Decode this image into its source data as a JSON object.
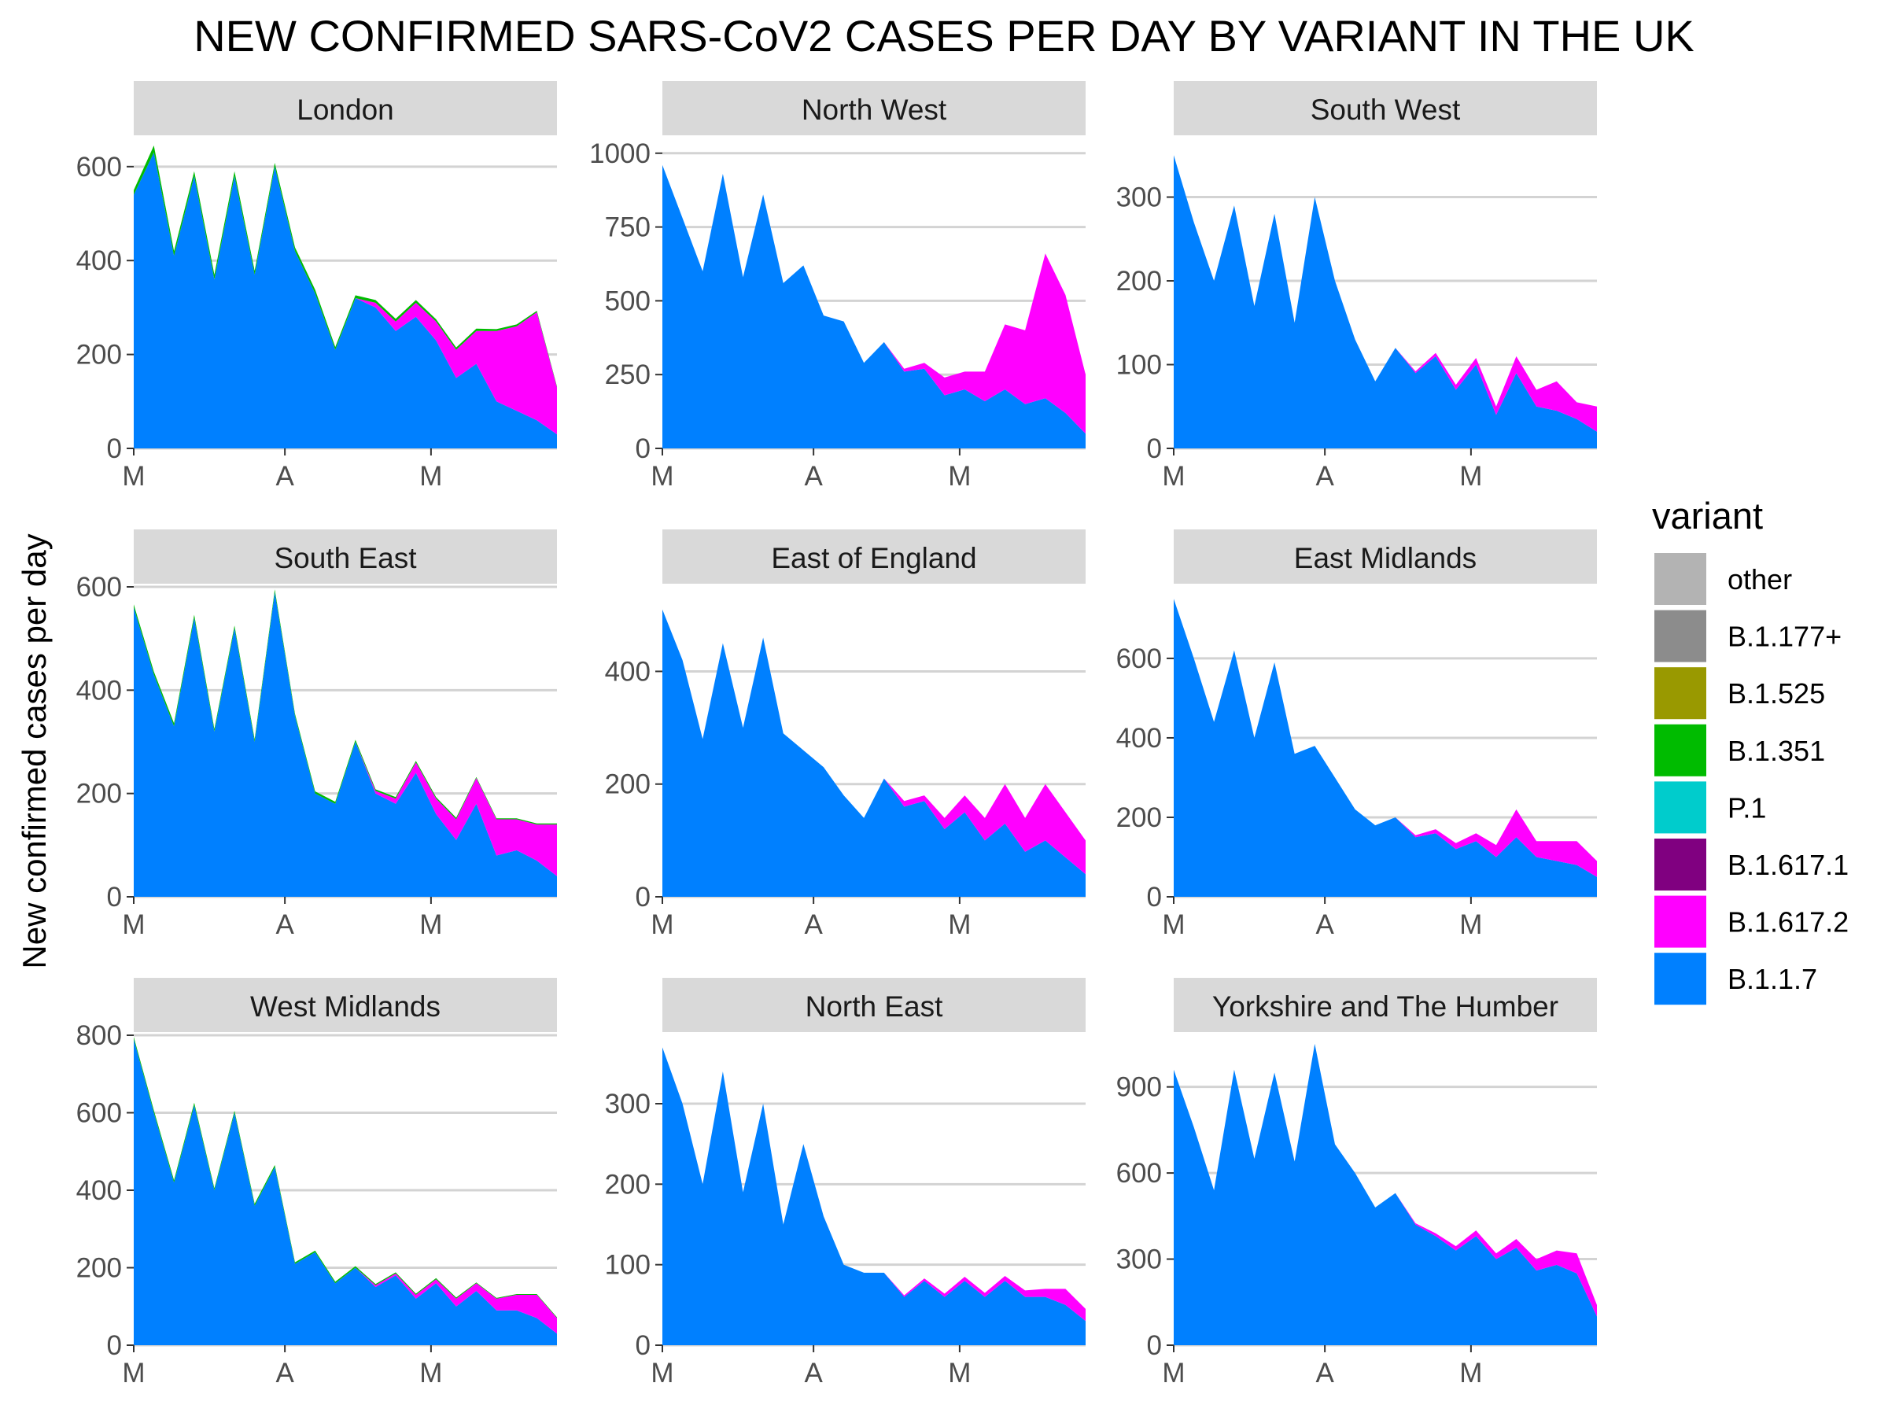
{
  "title": "NEW CONFIRMED SARS-CoV2 CASES PER DAY BY VARIANT IN THE UK",
  "ylabel": "New confirmed cases per day",
  "legend": {
    "title": "variant",
    "items": [
      {
        "label": "other",
        "color": "#B3B3B3"
      },
      {
        "label": "B.1.177+",
        "color": "#8C8C8C"
      },
      {
        "label": "B.1.525",
        "color": "#999900"
      },
      {
        "label": "B.1.351",
        "color": "#00BB00"
      },
      {
        "label": "P.1",
        "color": "#00CCCC"
      },
      {
        "label": "B.1.617.1",
        "color": "#800080"
      },
      {
        "label": "B.1.617.2",
        "color": "#FF00FF"
      },
      {
        "label": "B.1.1.7",
        "color": "#0080FF"
      }
    ]
  },
  "chart_data": [
    {
      "type": "area",
      "panel": "London",
      "x_ticks": [
        "M",
        "A",
        "M"
      ],
      "ylim": [
        0,
        660
      ],
      "y_ticks": [
        0,
        200,
        400,
        600
      ],
      "grid": true,
      "x": [
        0,
        4,
        8,
        12,
        16,
        20,
        24,
        28,
        32,
        36,
        40,
        44,
        48,
        52,
        56,
        60,
        64,
        68,
        72,
        76,
        80,
        84
      ],
      "series": [
        {
          "name": "B.1.1.7",
          "values": [
            540,
            630,
            410,
            580,
            360,
            580,
            370,
            600,
            420,
            330,
            210,
            320,
            300,
            250,
            280,
            230,
            150,
            180,
            100,
            80,
            60,
            30
          ]
        },
        {
          "name": "B.1.617.2",
          "values": [
            0,
            0,
            0,
            0,
            0,
            0,
            0,
            0,
            0,
            0,
            0,
            0,
            10,
            20,
            30,
            40,
            60,
            70,
            150,
            180,
            230,
            100
          ]
        },
        {
          "name": "B.1.351",
          "values": [
            10,
            15,
            10,
            10,
            10,
            10,
            8,
            8,
            8,
            8,
            6,
            6,
            6,
            6,
            6,
            5,
            5,
            5,
            4,
            4,
            3,
            2
          ]
        }
      ]
    },
    {
      "type": "area",
      "panel": "North West",
      "x_ticks": [
        "M",
        "A",
        "M"
      ],
      "ylim": [
        0,
        1050
      ],
      "y_ticks": [
        0,
        250,
        500,
        750,
        1000
      ],
      "grid": true,
      "x": [
        0,
        4,
        8,
        12,
        16,
        20,
        24,
        28,
        32,
        36,
        40,
        44,
        48,
        52,
        56,
        60,
        64,
        68,
        72,
        76,
        80,
        84
      ],
      "series": [
        {
          "name": "B.1.1.7",
          "values": [
            960,
            780,
            600,
            930,
            580,
            860,
            560,
            620,
            450,
            430,
            290,
            360,
            260,
            270,
            180,
            200,
            160,
            200,
            150,
            170,
            120,
            50
          ]
        },
        {
          "name": "B.1.617.2",
          "values": [
            0,
            0,
            0,
            0,
            0,
            0,
            0,
            0,
            0,
            0,
            0,
            0,
            10,
            20,
            60,
            60,
            100,
            220,
            250,
            490,
            400,
            200
          ]
        }
      ]
    },
    {
      "type": "area",
      "panel": "South West",
      "x_ticks": [
        "M",
        "A",
        "M"
      ],
      "ylim": [
        0,
        370
      ],
      "y_ticks": [
        0,
        100,
        200,
        300
      ],
      "grid": true,
      "x": [
        0,
        4,
        8,
        12,
        16,
        20,
        24,
        28,
        32,
        36,
        40,
        44,
        48,
        52,
        56,
        60,
        64,
        68,
        72,
        76,
        80,
        84
      ],
      "series": [
        {
          "name": "B.1.1.7",
          "values": [
            350,
            270,
            200,
            290,
            170,
            280,
            150,
            300,
            200,
            130,
            80,
            120,
            90,
            110,
            70,
            100,
            40,
            90,
            50,
            45,
            35,
            20
          ]
        },
        {
          "name": "B.1.617.2",
          "values": [
            0,
            0,
            0,
            0,
            0,
            0,
            0,
            0,
            0,
            0,
            0,
            0,
            2,
            4,
            6,
            8,
            10,
            20,
            20,
            35,
            20,
            30
          ]
        }
      ]
    },
    {
      "type": "area",
      "panel": "South East",
      "x_ticks": [
        "M",
        "A",
        "M"
      ],
      "ylim": [
        0,
        600
      ],
      "y_ticks": [
        0,
        200,
        400,
        600
      ],
      "grid": true,
      "x": [
        0,
        4,
        8,
        12,
        16,
        20,
        24,
        28,
        32,
        36,
        40,
        44,
        48,
        52,
        56,
        60,
        64,
        68,
        72,
        76,
        80,
        84
      ],
      "series": [
        {
          "name": "B.1.1.7",
          "values": [
            560,
            430,
            330,
            540,
            320,
            520,
            300,
            590,
            350,
            200,
            180,
            300,
            200,
            180,
            240,
            160,
            110,
            180,
            80,
            90,
            70,
            40
          ]
        },
        {
          "name": "B.1.617.2",
          "values": [
            0,
            0,
            0,
            0,
            0,
            0,
            0,
            0,
            0,
            0,
            0,
            0,
            5,
            10,
            20,
            30,
            40,
            50,
            70,
            60,
            70,
            100
          ]
        },
        {
          "name": "B.1.351",
          "values": [
            6,
            6,
            6,
            6,
            5,
            5,
            5,
            5,
            4,
            4,
            4,
            4,
            3,
            3,
            3,
            3,
            3,
            2,
            2,
            2,
            2,
            2
          ]
        }
      ]
    },
    {
      "type": "area",
      "panel": "East of England",
      "x_ticks": [
        "M",
        "A",
        "M"
      ],
      "ylim": [
        0,
        550
      ],
      "y_ticks": [
        0,
        200,
        400
      ],
      "grid": true,
      "x": [
        0,
        4,
        8,
        12,
        16,
        20,
        24,
        28,
        32,
        36,
        40,
        44,
        48,
        52,
        56,
        60,
        64,
        68,
        72,
        76,
        80,
        84
      ],
      "series": [
        {
          "name": "B.1.1.7",
          "values": [
            510,
            420,
            280,
            450,
            300,
            460,
            290,
            260,
            230,
            180,
            140,
            210,
            160,
            170,
            120,
            150,
            100,
            130,
            80,
            100,
            70,
            40
          ]
        },
        {
          "name": "B.1.617.2",
          "values": [
            0,
            0,
            0,
            0,
            0,
            0,
            0,
            0,
            0,
            0,
            0,
            0,
            10,
            10,
            20,
            30,
            40,
            70,
            60,
            100,
            80,
            60
          ]
        }
      ]
    },
    {
      "type": "area",
      "panel": "East Midlands",
      "x_ticks": [
        "M",
        "A",
        "M"
      ],
      "ylim": [
        0,
        780
      ],
      "y_ticks": [
        0,
        200,
        400,
        600
      ],
      "grid": true,
      "x": [
        0,
        4,
        8,
        12,
        16,
        20,
        24,
        28,
        32,
        36,
        40,
        44,
        48,
        52,
        56,
        60,
        64,
        68,
        72,
        76,
        80,
        84
      ],
      "series": [
        {
          "name": "B.1.1.7",
          "values": [
            750,
            600,
            440,
            620,
            400,
            590,
            360,
            380,
            300,
            220,
            180,
            200,
            150,
            160,
            120,
            140,
            100,
            150,
            100,
            90,
            80,
            50
          ]
        },
        {
          "name": "B.1.617.2",
          "values": [
            0,
            0,
            0,
            0,
            0,
            0,
            0,
            0,
            0,
            0,
            0,
            0,
            5,
            10,
            15,
            20,
            30,
            70,
            40,
            50,
            60,
            40
          ]
        }
      ]
    },
    {
      "type": "area",
      "panel": "West Midlands",
      "x_ticks": [
        "M",
        "A",
        "M"
      ],
      "ylim": [
        0,
        800
      ],
      "y_ticks": [
        0,
        200,
        400,
        600,
        800
      ],
      "grid": true,
      "x": [
        0,
        4,
        8,
        12,
        16,
        20,
        24,
        28,
        32,
        36,
        40,
        44,
        48,
        52,
        56,
        60,
        64,
        68,
        72,
        76,
        80,
        84
      ],
      "series": [
        {
          "name": "B.1.1.7",
          "values": [
            790,
            600,
            420,
            620,
            400,
            600,
            360,
            460,
            210,
            240,
            160,
            200,
            150,
            180,
            120,
            160,
            100,
            140,
            90,
            90,
            70,
            30
          ]
        },
        {
          "name": "B.1.617.2",
          "values": [
            0,
            0,
            0,
            0,
            0,
            0,
            0,
            0,
            0,
            0,
            0,
            0,
            5,
            5,
            10,
            10,
            20,
            20,
            30,
            40,
            60,
            40
          ]
        },
        {
          "name": "B.1.351",
          "values": [
            6,
            6,
            6,
            6,
            5,
            5,
            5,
            5,
            4,
            4,
            4,
            4,
            3,
            3,
            3,
            3,
            3,
            2,
            2,
            2,
            2,
            2
          ]
        }
      ]
    },
    {
      "type": "area",
      "panel": "North East",
      "x_ticks": [
        "M",
        "A",
        "M"
      ],
      "ylim": [
        0,
        385
      ],
      "y_ticks": [
        0,
        100,
        200,
        300
      ],
      "grid": true,
      "x": [
        0,
        4,
        8,
        12,
        16,
        20,
        24,
        28,
        32,
        36,
        40,
        44,
        48,
        52,
        56,
        60,
        64,
        68,
        72,
        76,
        80,
        84
      ],
      "series": [
        {
          "name": "B.1.1.7",
          "values": [
            370,
            300,
            200,
            340,
            190,
            300,
            150,
            250,
            160,
            100,
            90,
            90,
            60,
            80,
            60,
            80,
            60,
            80,
            60,
            60,
            50,
            30
          ]
        },
        {
          "name": "B.1.617.2",
          "values": [
            0,
            0,
            0,
            0,
            0,
            0,
            0,
            0,
            0,
            0,
            0,
            0,
            2,
            3,
            4,
            5,
            5,
            6,
            8,
            10,
            20,
            15
          ]
        }
      ]
    },
    {
      "type": "area",
      "panel": "Yorkshire and The Humber",
      "x_ticks": [
        "M",
        "A",
        "M"
      ],
      "ylim": [
        0,
        1080
      ],
      "y_ticks": [
        0,
        300,
        600,
        900
      ],
      "grid": true,
      "x": [
        0,
        4,
        8,
        12,
        16,
        20,
        24,
        28,
        32,
        36,
        40,
        44,
        48,
        52,
        56,
        60,
        64,
        68,
        72,
        76,
        80,
        84
      ],
      "series": [
        {
          "name": "B.1.1.7",
          "values": [
            960,
            760,
            540,
            960,
            650,
            950,
            640,
            1050,
            700,
            600,
            480,
            530,
            420,
            380,
            330,
            380,
            300,
            340,
            260,
            280,
            250,
            100
          ]
        },
        {
          "name": "B.1.617.2",
          "values": [
            0,
            0,
            0,
            0,
            0,
            0,
            0,
            0,
            0,
            0,
            0,
            0,
            5,
            10,
            15,
            20,
            20,
            30,
            40,
            50,
            70,
            40
          ]
        }
      ]
    }
  ]
}
